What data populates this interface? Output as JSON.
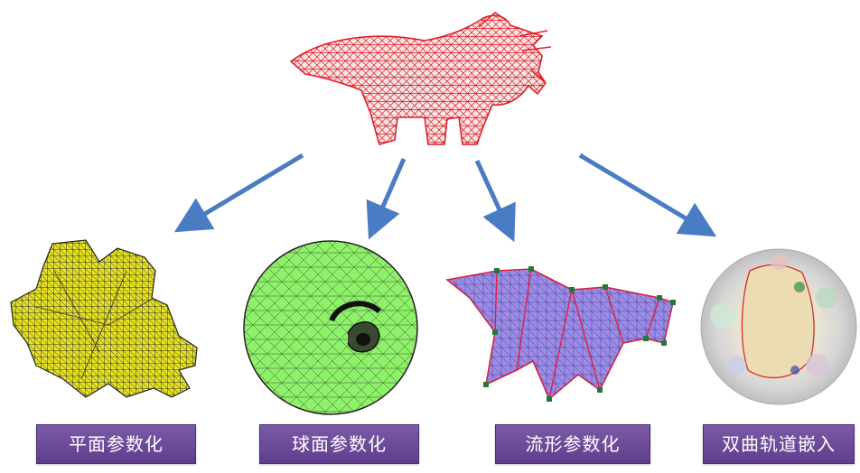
{
  "labels": {
    "planar": "平面参数化",
    "spherical": "球面参数化",
    "manifold": "流形参数化",
    "hyperbolic": "双曲轨道嵌入"
  },
  "colors": {
    "dino_mesh": "#e0202a",
    "arrow": "#4a7cc4",
    "planar_fill": "#e6e21e",
    "sphere_fill": "#8ff06a",
    "manifold_fill": "#9b8ce8",
    "manifold_edge": "#e02040",
    "manifold_node": "#1e7a3a",
    "label_bg": "#6a4a99",
    "label_text": "#ffffff"
  }
}
